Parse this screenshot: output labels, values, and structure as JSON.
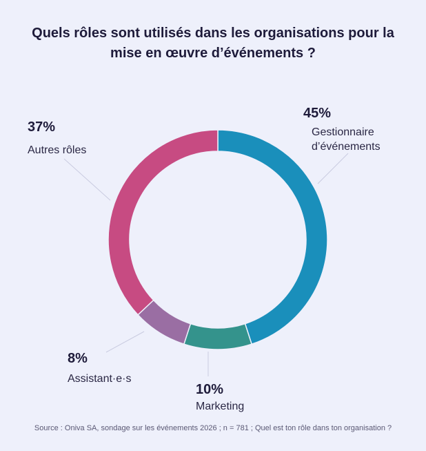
{
  "title_lines": [
    "Quels rôles sont utilisés dans les organisations pour la",
    "mise en œuvre d’événements ?"
  ],
  "source": "Source : Oniva SA, sondage sur les événements 2026 ; n = 781 ; Quel est ton rôle dans ton organisation ?",
  "chart_data": {
    "type": "pie",
    "donut": true,
    "title": "Quels rôles sont utilisés dans les organisations pour la mise en œuvre d’événements ?",
    "unit": "%",
    "slices": [
      {
        "pct_label": "45%",
        "label_lines": [
          "Gestionnaire",
          "d’événements"
        ],
        "value": 45,
        "color": "#1a8fbb"
      },
      {
        "pct_label": "10%",
        "label_lines": [
          "Marketing"
        ],
        "value": 10,
        "color": "#34938c"
      },
      {
        "pct_label": "8%",
        "label_lines": [
          "Assistant·e·s"
        ],
        "value": 8,
        "color": "#9a6ea3"
      },
      {
        "pct_label": "37%",
        "label_lines": [
          "Autres rôles"
        ],
        "value": 37,
        "color": "#c74b82"
      }
    ]
  }
}
